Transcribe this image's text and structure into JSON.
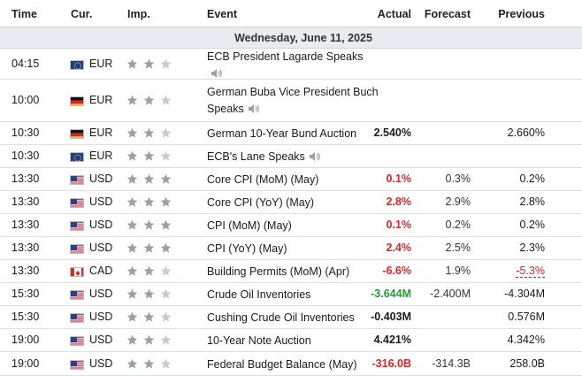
{
  "columns": {
    "time": "Time",
    "cur": "Cur.",
    "imp": "Imp.",
    "event": "Event",
    "actual": "Actual",
    "forecast": "Forecast",
    "previous": "Previous"
  },
  "date_label": "Wednesday, June 11, 2025",
  "colors": {
    "negative": "#e02424",
    "positive": "#1e9e2e",
    "star_filled": "#9aa1a9",
    "star_empty": "#c8ccd1"
  },
  "rows": [
    {
      "time": "04:15",
      "flag": "eu",
      "currency": "EUR",
      "importance": 2,
      "event": "ECB President Lagarde Speaks",
      "speech": true,
      "actual": "",
      "forecast": "",
      "previous": ""
    },
    {
      "time": "10:00",
      "flag": "de",
      "currency": "EUR",
      "importance": 2,
      "event": "German Buba Vice President Buch Speaks",
      "speech": true,
      "actual": "",
      "forecast": "",
      "previous": ""
    },
    {
      "time": "10:30",
      "flag": "de",
      "currency": "EUR",
      "importance": 2,
      "event": "German 10-Year Bund Auction",
      "speech": false,
      "actual": "2.540%",
      "forecast": "",
      "previous": "2.660%"
    },
    {
      "time": "10:30",
      "flag": "eu",
      "currency": "EUR",
      "importance": 2,
      "event": "ECB's Lane Speaks",
      "speech": true,
      "actual": "",
      "forecast": "",
      "previous": ""
    },
    {
      "time": "13:30",
      "flag": "us",
      "currency": "USD",
      "importance": 3,
      "event": "Core CPI (MoM) (May)",
      "speech": false,
      "actual": "0.1%",
      "actual_color": "red",
      "forecast": "0.3%",
      "previous": "0.2%"
    },
    {
      "time": "13:30",
      "flag": "us",
      "currency": "USD",
      "importance": 3,
      "event": "Core CPI (YoY) (May)",
      "speech": false,
      "actual": "2.8%",
      "actual_color": "red",
      "forecast": "2.9%",
      "previous": "2.8%"
    },
    {
      "time": "13:30",
      "flag": "us",
      "currency": "USD",
      "importance": 3,
      "event": "CPI (MoM) (May)",
      "speech": false,
      "actual": "0.1%",
      "actual_color": "red",
      "forecast": "0.2%",
      "previous": "0.2%"
    },
    {
      "time": "13:30",
      "flag": "us",
      "currency": "USD",
      "importance": 3,
      "event": "CPI (YoY) (May)",
      "speech": false,
      "actual": "2.4%",
      "actual_color": "red",
      "forecast": "2.5%",
      "previous": "2.3%"
    },
    {
      "time": "13:30",
      "flag": "ca",
      "currency": "CAD",
      "importance": 2,
      "event": "Building Permits (MoM) (Apr)",
      "speech": false,
      "actual": "-6.6%",
      "actual_color": "red",
      "forecast": "1.9%",
      "previous": "-5.3%",
      "previous_revised": true
    },
    {
      "time": "15:30",
      "flag": "us",
      "currency": "USD",
      "importance": 2,
      "event": "Crude Oil Inventories",
      "speech": false,
      "actual": "-3.644M",
      "actual_color": "green",
      "forecast": "-2.400M",
      "previous": "-4.304M"
    },
    {
      "time": "15:30",
      "flag": "us",
      "currency": "USD",
      "importance": 2,
      "event": "Cushing Crude Oil Inventories",
      "speech": false,
      "actual": "-0.403M",
      "forecast": "",
      "previous": "0.576M"
    },
    {
      "time": "19:00",
      "flag": "us",
      "currency": "USD",
      "importance": 2,
      "event": "10-Year Note Auction",
      "speech": false,
      "actual": "4.421%",
      "forecast": "",
      "previous": "4.342%"
    },
    {
      "time": "19:00",
      "flag": "us",
      "currency": "USD",
      "importance": 2,
      "event": "Federal Budget Balance (May)",
      "speech": false,
      "actual": "-316.0B",
      "actual_color": "red",
      "forecast": "-314.3B",
      "previous": "258.0B"
    }
  ]
}
